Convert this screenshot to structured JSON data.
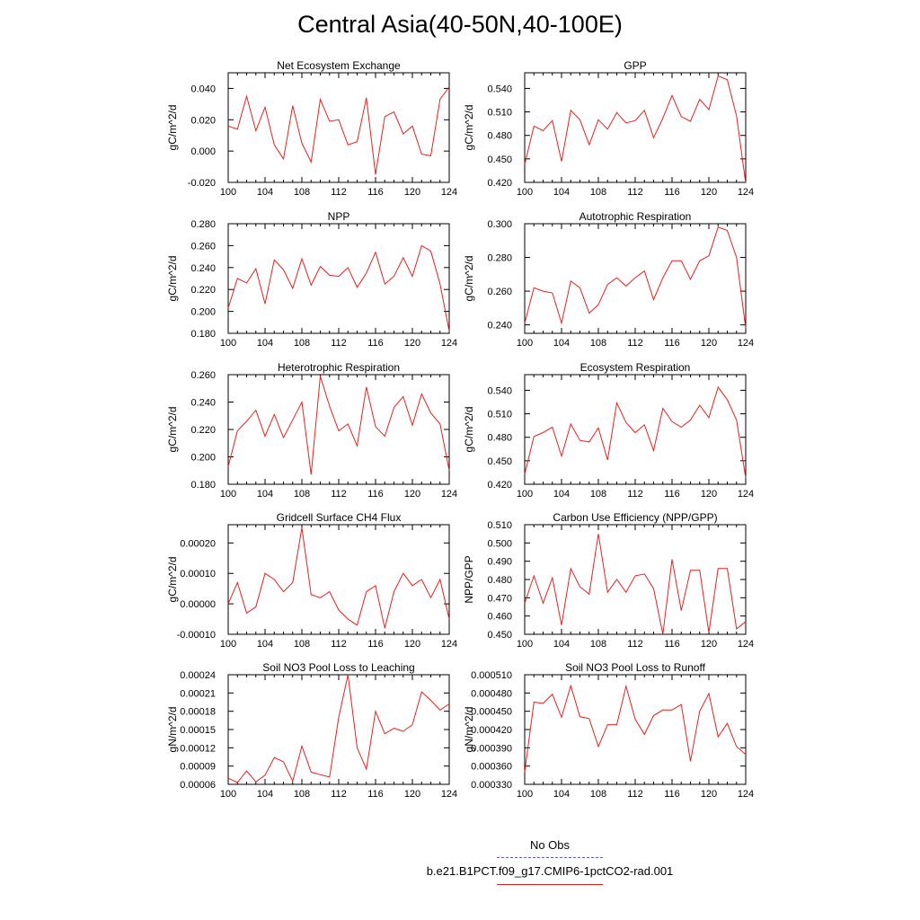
{
  "title": "Central Asia(40-50N,40-100E)",
  "legend": {
    "obs": {
      "label": "No Obs",
      "color": "#5b5bd6"
    },
    "run": {
      "label": "b.e21.B1PCT.f09_g17.CMIP6-1pctCO2-rad.001",
      "color": "#e8201c"
    }
  },
  "line_color": "#e8201c",
  "chart_data": [
    {
      "type": "line",
      "title": "Net Ecosystem Exchange",
      "ylabel": "gC/m^2/d",
      "xlim": [
        100,
        124
      ],
      "ylim": [
        -0.02,
        0.05
      ],
      "yticks": [
        "-0.020",
        "0.000",
        "0.020",
        "0.040"
      ],
      "ytick_values": [
        -0.02,
        0.0,
        0.02,
        0.04
      ],
      "xticks": [
        "100",
        "104",
        "108",
        "112",
        "116",
        "120",
        "124"
      ],
      "x": [
        100,
        101,
        102,
        103,
        104,
        105,
        106,
        107,
        108,
        109,
        110,
        111,
        112,
        113,
        114,
        115,
        116,
        117,
        118,
        119,
        120,
        121,
        122,
        123,
        124
      ],
      "y": [
        0.016,
        0.014,
        0.035,
        0.013,
        0.028,
        0.004,
        -0.005,
        0.029,
        0.005,
        -0.007,
        0.033,
        0.019,
        0.02,
        0.004,
        0.006,
        0.034,
        -0.015,
        0.022,
        0.025,
        0.011,
        0.016,
        -0.002,
        -0.003,
        0.033,
        0.041
      ]
    },
    {
      "type": "line",
      "title": "GPP",
      "ylabel": "gC/m^2/d",
      "xlim": [
        100,
        124
      ],
      "ylim": [
        0.42,
        0.56
      ],
      "yticks": [
        "0.420",
        "0.450",
        "0.480",
        "0.510",
        "0.540"
      ],
      "ytick_values": [
        0.42,
        0.45,
        0.48,
        0.51,
        0.54
      ],
      "xticks": [
        "100",
        "104",
        "108",
        "112",
        "116",
        "120",
        "124"
      ],
      "x": [
        100,
        101,
        102,
        103,
        104,
        105,
        106,
        107,
        108,
        109,
        110,
        111,
        112,
        113,
        114,
        115,
        116,
        117,
        118,
        119,
        120,
        121,
        122,
        123,
        124
      ],
      "y": [
        0.443,
        0.492,
        0.486,
        0.499,
        0.447,
        0.512,
        0.5,
        0.468,
        0.5,
        0.488,
        0.509,
        0.496,
        0.499,
        0.512,
        0.477,
        0.502,
        0.531,
        0.504,
        0.498,
        0.526,
        0.513,
        0.556,
        0.551,
        0.505,
        0.419
      ]
    },
    {
      "type": "line",
      "title": "NPP",
      "ylabel": "gC/m^2/d",
      "xlim": [
        100,
        124
      ],
      "ylim": [
        0.18,
        0.28
      ],
      "yticks": [
        "0.180",
        "0.200",
        "0.220",
        "0.240",
        "0.260",
        "0.280"
      ],
      "ytick_values": [
        0.18,
        0.2,
        0.22,
        0.24,
        0.26,
        0.28
      ],
      "xticks": [
        "100",
        "104",
        "108",
        "112",
        "116",
        "120",
        "124"
      ],
      "x": [
        100,
        101,
        102,
        103,
        104,
        105,
        106,
        107,
        108,
        109,
        110,
        111,
        112,
        113,
        114,
        115,
        116,
        117,
        118,
        119,
        120,
        121,
        122,
        123,
        124
      ],
      "y": [
        0.203,
        0.23,
        0.226,
        0.239,
        0.207,
        0.247,
        0.238,
        0.221,
        0.248,
        0.224,
        0.241,
        0.233,
        0.232,
        0.24,
        0.222,
        0.235,
        0.254,
        0.225,
        0.232,
        0.249,
        0.232,
        0.26,
        0.255,
        0.225,
        0.182
      ]
    },
    {
      "type": "line",
      "title": "Autotrophic Respiration",
      "ylabel": "gC/m^2/d",
      "xlim": [
        100,
        124
      ],
      "ylim": [
        0.235,
        0.3
      ],
      "yticks": [
        "0.240",
        "0.260",
        "0.280",
        "0.300"
      ],
      "ytick_values": [
        0.24,
        0.26,
        0.28,
        0.3
      ],
      "xticks": [
        "100",
        "104",
        "108",
        "112",
        "116",
        "120",
        "124"
      ],
      "x": [
        100,
        101,
        102,
        103,
        104,
        105,
        106,
        107,
        108,
        109,
        110,
        111,
        112,
        113,
        114,
        115,
        116,
        117,
        118,
        119,
        120,
        121,
        122,
        123,
        124
      ],
      "y": [
        0.241,
        0.262,
        0.26,
        0.259,
        0.241,
        0.266,
        0.262,
        0.247,
        0.252,
        0.264,
        0.268,
        0.263,
        0.268,
        0.272,
        0.255,
        0.268,
        0.278,
        0.278,
        0.267,
        0.278,
        0.281,
        0.298,
        0.296,
        0.28,
        0.238
      ]
    },
    {
      "type": "line",
      "title": "Heterotrophic Respiration",
      "ylabel": "gC/m^2/d",
      "xlim": [
        100,
        124
      ],
      "ylim": [
        0.18,
        0.26
      ],
      "yticks": [
        "0.180",
        "0.200",
        "0.220",
        "0.240",
        "0.260"
      ],
      "ytick_values": [
        0.18,
        0.2,
        0.22,
        0.24,
        0.26
      ],
      "xticks": [
        "100",
        "104",
        "108",
        "112",
        "116",
        "120",
        "124"
      ],
      "x": [
        100,
        101,
        102,
        103,
        104,
        105,
        106,
        107,
        108,
        109,
        110,
        111,
        112,
        113,
        114,
        115,
        116,
        117,
        118,
        119,
        120,
        121,
        122,
        123,
        124
      ],
      "y": [
        0.193,
        0.219,
        0.226,
        0.234,
        0.215,
        0.231,
        0.214,
        0.227,
        0.24,
        0.187,
        0.259,
        0.237,
        0.219,
        0.224,
        0.208,
        0.251,
        0.222,
        0.215,
        0.236,
        0.244,
        0.223,
        0.246,
        0.232,
        0.224,
        0.19
      ]
    },
    {
      "type": "line",
      "title": "Ecosystem Respiration",
      "ylabel": "gC/m^2/d",
      "xlim": [
        100,
        124
      ],
      "ylim": [
        0.42,
        0.56
      ],
      "yticks": [
        "0.420",
        "0.450",
        "0.480",
        "0.510",
        "0.540"
      ],
      "ytick_values": [
        0.42,
        0.45,
        0.48,
        0.51,
        0.54
      ],
      "xticks": [
        "100",
        "104",
        "108",
        "112",
        "116",
        "120",
        "124"
      ],
      "x": [
        100,
        101,
        102,
        103,
        104,
        105,
        106,
        107,
        108,
        109,
        110,
        111,
        112,
        113,
        114,
        115,
        116,
        117,
        118,
        119,
        120,
        121,
        122,
        123,
        124
      ],
      "y": [
        0.433,
        0.481,
        0.486,
        0.493,
        0.456,
        0.497,
        0.476,
        0.474,
        0.492,
        0.451,
        0.524,
        0.499,
        0.486,
        0.496,
        0.463,
        0.517,
        0.5,
        0.493,
        0.502,
        0.521,
        0.505,
        0.544,
        0.528,
        0.502,
        0.428
      ]
    },
    {
      "type": "line",
      "title": "Gridcell Surface CH4 Flux",
      "ylabel": "gC/m^2/d",
      "xlim": [
        100,
        124
      ],
      "ylim": [
        -0.0001,
        0.00026
      ],
      "yticks": [
        "-0.00010",
        "0.00000",
        "0.00010",
        "0.00020"
      ],
      "ytick_values": [
        -0.0001,
        0.0,
        0.0001,
        0.0002
      ],
      "xticks": [
        "100",
        "104",
        "108",
        "112",
        "116",
        "120",
        "124"
      ],
      "x": [
        100,
        101,
        102,
        103,
        104,
        105,
        106,
        107,
        108,
        109,
        110,
        111,
        112,
        113,
        114,
        115,
        116,
        117,
        118,
        119,
        120,
        121,
        122,
        123,
        124
      ],
      "y": [
        0.0,
        7e-05,
        -3e-05,
        -1e-05,
        0.0001,
        8e-05,
        4e-05,
        7e-05,
        0.00025,
        3e-05,
        2e-05,
        4e-05,
        -2e-05,
        -5e-05,
        -7e-05,
        4e-05,
        6e-05,
        -8e-05,
        4e-05,
        0.0001,
        6e-05,
        8e-05,
        2e-05,
        8e-05,
        -5e-05
      ]
    },
    {
      "type": "line",
      "title": "Carbon Use Efficiency (NPP/GPP)",
      "ylabel": "NPP/GPP",
      "xlim": [
        100,
        124
      ],
      "ylim": [
        0.45,
        0.51
      ],
      "yticks": [
        "0.450",
        "0.460",
        "0.470",
        "0.480",
        "0.490",
        "0.500",
        "0.510"
      ],
      "ytick_values": [
        0.45,
        0.46,
        0.47,
        0.48,
        0.49,
        0.5,
        0.51
      ],
      "xticks": [
        "100",
        "104",
        "108",
        "112",
        "116",
        "120",
        "124"
      ],
      "x": [
        100,
        101,
        102,
        103,
        104,
        105,
        106,
        107,
        108,
        109,
        110,
        111,
        112,
        113,
        114,
        115,
        116,
        117,
        118,
        119,
        120,
        121,
        122,
        123,
        124
      ],
      "y": [
        0.467,
        0.482,
        0.467,
        0.481,
        0.455,
        0.486,
        0.476,
        0.472,
        0.505,
        0.473,
        0.48,
        0.473,
        0.482,
        0.483,
        0.475,
        0.45,
        0.491,
        0.463,
        0.485,
        0.485,
        0.451,
        0.486,
        0.486,
        0.453,
        0.457
      ]
    },
    {
      "type": "line",
      "title": "Soil NO3 Pool Loss to Leaching",
      "ylabel": "gN/m^2/d",
      "xlim": [
        100,
        124
      ],
      "ylim": [
        6e-05,
        0.00024
      ],
      "yticks": [
        "0.00006",
        "0.00009",
        "0.00012",
        "0.00015",
        "0.00018",
        "0.00021",
        "0.00024"
      ],
      "ytick_values": [
        6e-05,
        9e-05,
        0.00012,
        0.00015,
        0.00018,
        0.00021,
        0.00024
      ],
      "xticks": [
        "100",
        "104",
        "108",
        "112",
        "116",
        "120",
        "124"
      ],
      "x": [
        100,
        101,
        102,
        103,
        104,
        105,
        106,
        107,
        108,
        109,
        110,
        111,
        112,
        113,
        114,
        115,
        116,
        117,
        118,
        119,
        120,
        121,
        122,
        123,
        124
      ],
      "y": [
        7e-05,
        6.3e-05,
        8.2e-05,
        6.4e-05,
        7.5e-05,
        0.000104,
        9.7e-05,
        6.5e-05,
        0.000123,
        8e-05,
        7.6e-05,
        7.2e-05,
        0.00017,
        0.00024,
        0.00012,
        8.5e-05,
        0.00018,
        0.000143,
        0.000152,
        0.000147,
        0.000158,
        0.000212,
        0.000198,
        0.000182,
        0.000192
      ]
    },
    {
      "type": "line",
      "title": "Soil NO3 Pool Loss to Runoff",
      "ylabel": "gN/m^2/d",
      "xlim": [
        100,
        124
      ],
      "ylim": [
        0.00033,
        0.00051
      ],
      "yticks": [
        "0.000330",
        "0.000360",
        "0.000390",
        "0.000420",
        "0.000450",
        "0.000480",
        "0.000510"
      ],
      "ytick_values": [
        0.00033,
        0.00036,
        0.00039,
        0.00042,
        0.00045,
        0.00048,
        0.00051
      ],
      "xticks": [
        "100",
        "104",
        "108",
        "112",
        "116",
        "120",
        "124"
      ],
      "x": [
        100,
        101,
        102,
        103,
        104,
        105,
        106,
        107,
        108,
        109,
        110,
        111,
        112,
        113,
        114,
        115,
        116,
        117,
        118,
        119,
        120,
        121,
        122,
        123,
        124
      ],
      "y": [
        0.00035,
        0.000465,
        0.000463,
        0.000478,
        0.00044,
        0.000492,
        0.000441,
        0.000438,
        0.000392,
        0.000428,
        0.000428,
        0.000491,
        0.000437,
        0.000412,
        0.000443,
        0.000452,
        0.000452,
        0.000461,
        0.000368,
        0.00045,
        0.000479,
        0.000408,
        0.00043,
        0.000392,
        0.000379
      ]
    }
  ]
}
